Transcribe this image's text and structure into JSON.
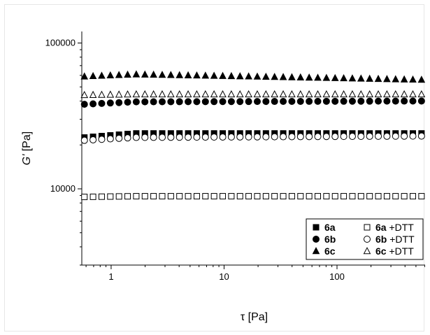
{
  "chart_data": {
    "type": "scatter",
    "x_scale": "log",
    "y_scale": "log",
    "xlim": [
      0.55,
      620
    ],
    "ylim": [
      3000,
      120000
    ],
    "x_ticks": [
      {
        "value": 1,
        "label": "1"
      },
      {
        "value": 10,
        "label": "10"
      },
      {
        "value": 100,
        "label": "100"
      }
    ],
    "y_ticks": [
      {
        "value": 10000,
        "label": "10000"
      },
      {
        "value": 100000,
        "label": "100000"
      }
    ],
    "xlabel": "τ [Pa]",
    "ylabel_italic": "G'",
    "ylabel_unit": " [Pa]",
    "legend": {
      "placement": "bottom-right"
    },
    "series": [
      {
        "name": "6a",
        "suffix": "",
        "marker": "square",
        "filled": true,
        "start_value": 22500,
        "plateau_value": 24000,
        "end_value": 24000
      },
      {
        "name": "6a",
        "suffix": " +DTT",
        "marker": "square",
        "filled": false,
        "start_value": 8800,
        "plateau_value": 8900,
        "end_value": 8900
      },
      {
        "name": "6b",
        "suffix": "",
        "marker": "circle",
        "filled": true,
        "start_value": 38000,
        "plateau_value": 39500,
        "end_value": 40000
      },
      {
        "name": "6b",
        "suffix": " +DTT",
        "marker": "circle",
        "filled": false,
        "start_value": 21500,
        "plateau_value": 22500,
        "end_value": 23000
      },
      {
        "name": "6c",
        "suffix": "",
        "marker": "triangle",
        "filled": true,
        "start_value": 59000,
        "plateau_value": 61000,
        "end_value": 56000
      },
      {
        "name": "6c",
        "suffix": " +DTT",
        "marker": "triangle",
        "filled": false,
        "start_value": 44000,
        "plateau_value": 44500,
        "end_value": 44500
      }
    ]
  }
}
